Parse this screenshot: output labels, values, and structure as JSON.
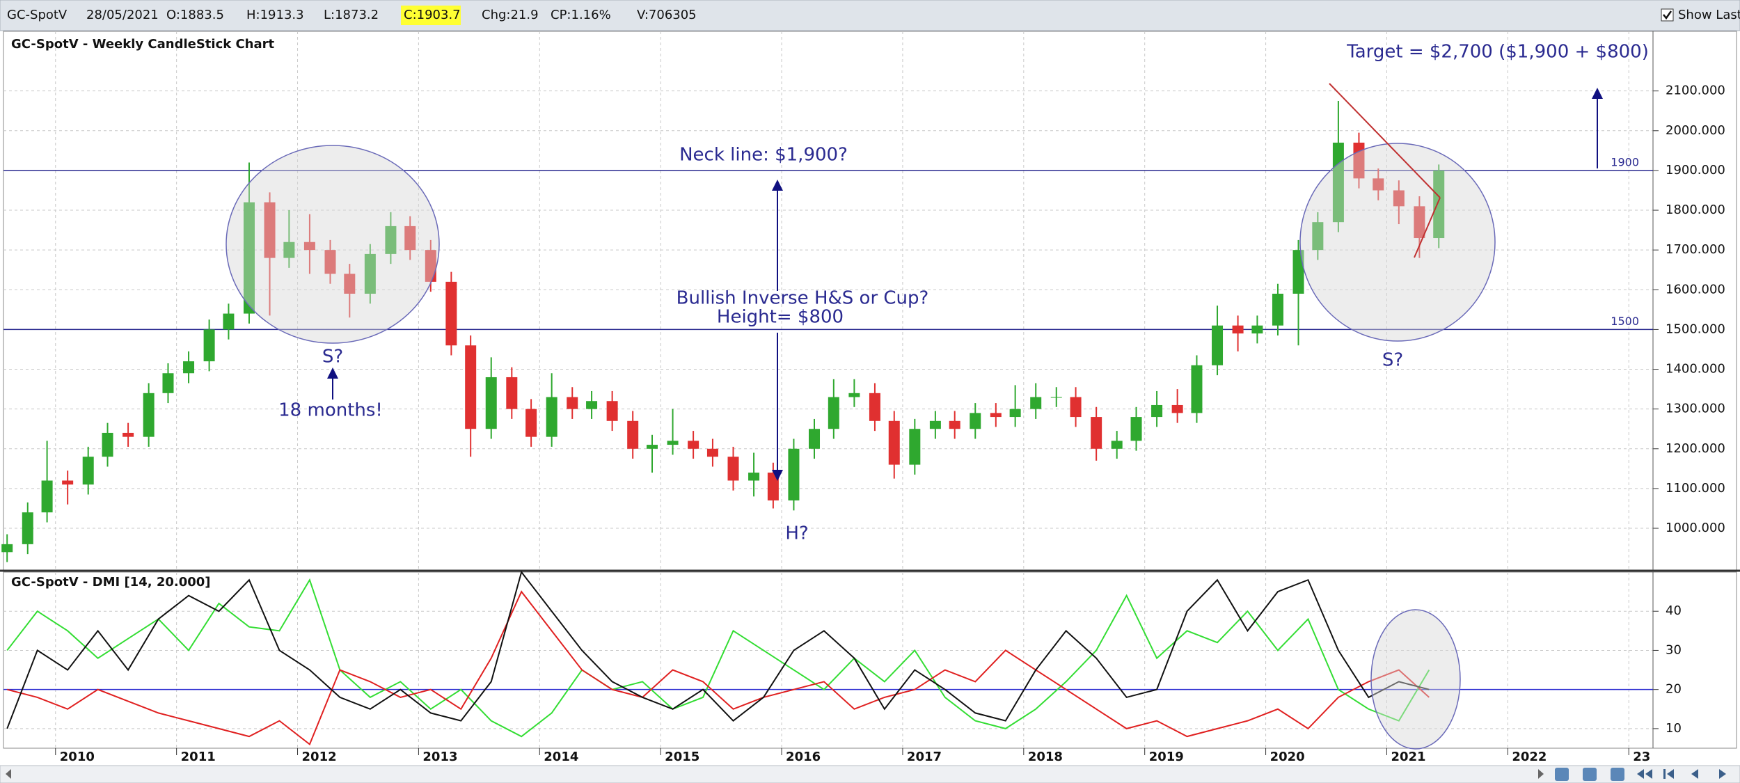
{
  "toolbar": {
    "symbol": "GC-SpotV",
    "date": "28/05/2021",
    "open": "O:1883.5",
    "high": "H:1913.3",
    "low": "L:1873.2",
    "close": "C:1903.7",
    "change": "Chg:21.9",
    "change_percent": "CP:1.16%",
    "volume": "V:706305",
    "show_last": "Show Last"
  },
  "chart_data": [
    {
      "type": "candlestick",
      "title": "GC-SpotV - Weekly CandleStick Chart",
      "x": [
        2009.6,
        2009.77,
        2009.93,
        2010.1,
        2010.27,
        2010.43,
        2010.6,
        2010.77,
        2010.93,
        2011.1,
        2011.27,
        2011.43,
        2011.6,
        2011.77,
        2011.93,
        2012.1,
        2012.27,
        2012.43,
        2012.6,
        2012.77,
        2012.93,
        2013.1,
        2013.27,
        2013.43,
        2013.6,
        2013.77,
        2013.93,
        2014.1,
        2014.27,
        2014.43,
        2014.6,
        2014.77,
        2014.93,
        2015.1,
        2015.27,
        2015.43,
        2015.6,
        2015.77,
        2015.93,
        2016.1,
        2016.27,
        2016.43,
        2016.6,
        2016.77,
        2016.93,
        2017.1,
        2017.27,
        2017.43,
        2017.6,
        2017.77,
        2017.93,
        2018.1,
        2018.27,
        2018.43,
        2018.6,
        2018.77,
        2018.93,
        2019.1,
        2019.27,
        2019.43,
        2019.6,
        2019.77,
        2019.93,
        2020.1,
        2020.27,
        2020.43,
        2020.6,
        2020.77,
        2020.93,
        2021.1,
        2021.27,
        2021.43
      ],
      "open": [
        940,
        960,
        1040,
        1120,
        1110,
        1180,
        1240,
        1230,
        1340,
        1390,
        1420,
        1500,
        1540,
        1820,
        1680,
        1720,
        1700,
        1640,
        1590,
        1690,
        1760,
        1700,
        1620,
        1460,
        1250,
        1380,
        1300,
        1230,
        1330,
        1300,
        1320,
        1270,
        1200,
        1210,
        1220,
        1200,
        1180,
        1120,
        1140,
        1070,
        1200,
        1250,
        1330,
        1340,
        1270,
        1160,
        1250,
        1270,
        1250,
        1290,
        1280,
        1300,
        1330,
        1330,
        1280,
        1200,
        1220,
        1280,
        1310,
        1290,
        1410,
        1510,
        1490,
        1510,
        1590,
        1700,
        1770,
        1970,
        1880,
        1850,
        1810,
        1730
      ],
      "high": [
        985,
        1065,
        1220,
        1145,
        1205,
        1265,
        1265,
        1365,
        1415,
        1445,
        1525,
        1565,
        1920,
        1845,
        1800,
        1790,
        1725,
        1665,
        1715,
        1795,
        1785,
        1725,
        1645,
        1485,
        1430,
        1405,
        1325,
        1390,
        1355,
        1345,
        1345,
        1295,
        1235,
        1300,
        1245,
        1225,
        1205,
        1190,
        1165,
        1225,
        1275,
        1375,
        1375,
        1365,
        1295,
        1275,
        1295,
        1295,
        1315,
        1315,
        1360,
        1365,
        1355,
        1355,
        1305,
        1245,
        1305,
        1345,
        1350,
        1435,
        1560,
        1535,
        1535,
        1615,
        1725,
        1795,
        2075,
        1995,
        1905,
        1875,
        1835,
        1915
      ],
      "low": [
        915,
        935,
        1015,
        1060,
        1085,
        1155,
        1205,
        1205,
        1315,
        1365,
        1395,
        1475,
        1515,
        1535,
        1655,
        1640,
        1615,
        1530,
        1565,
        1665,
        1675,
        1595,
        1435,
        1180,
        1225,
        1275,
        1205,
        1205,
        1275,
        1275,
        1245,
        1175,
        1140,
        1185,
        1175,
        1155,
        1095,
        1080,
        1050,
        1045,
        1175,
        1225,
        1305,
        1245,
        1125,
        1135,
        1225,
        1225,
        1225,
        1255,
        1255,
        1275,
        1305,
        1255,
        1170,
        1175,
        1195,
        1255,
        1265,
        1265,
        1385,
        1445,
        1465,
        1485,
        1460,
        1675,
        1745,
        1855,
        1825,
        1765,
        1680,
        1705
      ],
      "close": [
        960,
        1040,
        1120,
        1110,
        1180,
        1240,
        1230,
        1340,
        1390,
        1420,
        1500,
        1540,
        1820,
        1680,
        1720,
        1700,
        1640,
        1590,
        1690,
        1760,
        1700,
        1620,
        1460,
        1250,
        1380,
        1300,
        1230,
        1330,
        1300,
        1320,
        1270,
        1200,
        1210,
        1220,
        1200,
        1180,
        1120,
        1140,
        1070,
        1200,
        1250,
        1330,
        1340,
        1270,
        1160,
        1250,
        1270,
        1250,
        1290,
        1280,
        1300,
        1330,
        1330,
        1280,
        1200,
        1220,
        1280,
        1310,
        1290,
        1410,
        1510,
        1490,
        1510,
        1590,
        1700,
        1770,
        1970,
        1880,
        1850,
        1810,
        1730,
        1900
      ],
      "up_color": "#2fa82f",
      "down_color": "#e03030",
      "xlim": [
        2009.57,
        2023.2
      ],
      "xticks": [
        2010,
        2011,
        2012,
        2013,
        2014,
        2015,
        2016,
        2017,
        2018,
        2019,
        2020,
        2021,
        2022,
        2023
      ],
      "ylim": [
        895,
        2250
      ],
      "yticks": [
        {
          "value": 1000,
          "label": "1000.000"
        },
        {
          "value": 1100,
          "label": "1100.000"
        },
        {
          "value": 1200,
          "label": "1200.000"
        },
        {
          "value": 1300,
          "label": "1300.000"
        },
        {
          "value": 1400,
          "label": "1400.000"
        },
        {
          "value": 1500,
          "label": "1500.000"
        },
        {
          "value": 1600,
          "label": "1600.000"
        },
        {
          "value": 1700,
          "label": "1700.000"
        },
        {
          "value": 1800,
          "label": "1800.000"
        },
        {
          "value": 1900,
          "label": "1900.000"
        },
        {
          "value": 2000,
          "label": "2000.000"
        },
        {
          "value": 2100,
          "label": "2100.000"
        }
      ],
      "grid": true,
      "hlines": [
        1900,
        1500
      ],
      "hline_color": "#2a2a90",
      "annotations": [
        "Neck line: $1,900?",
        "Bullish Inverse H&S or Cup?",
        "Height= $800",
        "S?",
        "18 months!",
        "H?",
        "S?",
        "Target = $2,700 ($1,900 + $800)"
      ]
    },
    {
      "type": "line",
      "title": "GC-SpotV - DMI [14, 20.000]",
      "x": [
        2009.6,
        2009.85,
        2010.1,
        2010.35,
        2010.6,
        2010.85,
        2011.1,
        2011.35,
        2011.6,
        2011.85,
        2012.1,
        2012.35,
        2012.6,
        2012.85,
        2013.1,
        2013.35,
        2013.6,
        2013.85,
        2014.1,
        2014.35,
        2014.6,
        2014.85,
        2015.1,
        2015.35,
        2015.6,
        2015.85,
        2016.1,
        2016.35,
        2016.6,
        2016.85,
        2017.1,
        2017.35,
        2017.6,
        2017.85,
        2018.1,
        2018.35,
        2018.6,
        2018.85,
        2019.1,
        2019.35,
        2019.6,
        2019.85,
        2020.1,
        2020.35,
        2020.6,
        2020.85,
        2021.1,
        2021.35
      ],
      "series": [
        {
          "color": "#33dd33",
          "values": [
            30,
            40,
            35,
            28,
            33,
            38,
            30,
            42,
            36,
            35,
            48,
            25,
            18,
            22,
            15,
            20,
            12,
            8,
            14,
            25,
            20,
            22,
            15,
            18,
            35,
            30,
            25,
            20,
            28,
            22,
            30,
            18,
            12,
            10,
            15,
            22,
            30,
            44,
            28,
            35,
            32,
            40,
            30,
            38,
            20,
            15,
            12,
            25
          ]
        },
        {
          "color": "#e02020",
          "values": [
            20,
            18,
            15,
            20,
            17,
            14,
            12,
            10,
            8,
            12,
            6,
            25,
            22,
            18,
            20,
            15,
            28,
            45,
            35,
            25,
            20,
            18,
            25,
            22,
            15,
            18,
            20,
            22,
            15,
            18,
            20,
            25,
            22,
            30,
            25,
            20,
            15,
            10,
            12,
            8,
            10,
            12,
            15,
            10,
            18,
            22,
            25,
            18
          ]
        },
        {
          "color": "#111111",
          "values": [
            10,
            30,
            25,
            35,
            25,
            38,
            44,
            40,
            48,
            30,
            25,
            18,
            15,
            20,
            14,
            12,
            22,
            50,
            40,
            30,
            22,
            18,
            15,
            20,
            12,
            18,
            30,
            35,
            28,
            15,
            25,
            20,
            14,
            12,
            25,
            35,
            28,
            18,
            20,
            40,
            48,
            35,
            45,
            48,
            30,
            18,
            22,
            20
          ]
        }
      ],
      "xlim": [
        2009.57,
        2023.2
      ],
      "xticks": [
        2010,
        2011,
        2012,
        2013,
        2014,
        2015,
        2016,
        2017,
        2018,
        2019,
        2020,
        2021,
        2022,
        {
          "value": 2023,
          "label": "23"
        }
      ],
      "ylim": [
        5,
        50
      ],
      "yticks": [
        10,
        20,
        30,
        40
      ],
      "grid": true,
      "hlines": [
        20
      ],
      "hline_color": "#2a2ad0"
    }
  ]
}
